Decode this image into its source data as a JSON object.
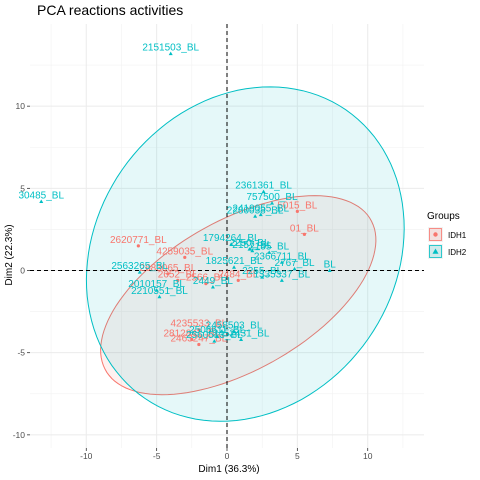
{
  "chart_data": {
    "type": "scatter",
    "title": "PCA reactions activities",
    "xlabel": "Dim1 (36.3%)",
    "ylabel": "Dim2 (22.3%)",
    "xlim": [
      -14,
      14
    ],
    "ylim": [
      -10.8,
      15
    ],
    "xticks": [
      -10,
      -5,
      0,
      5,
      10
    ],
    "yticks": [
      -10,
      -5,
      0,
      5,
      10
    ],
    "grid": true,
    "zero_lines": true,
    "legend": {
      "title": "Groups",
      "placement": "right",
      "entries": [
        {
          "label": "IDH1",
          "symbol": "circle",
          "color": "#F8766D"
        },
        {
          "label": "IDH2",
          "symbol": "triangle",
          "color": "#00BFC4"
        }
      ]
    },
    "ellipses": [
      {
        "group": "IDH1",
        "color": "#F8766D",
        "center": [
          0.8,
          -1.5
        ],
        "semi_axes": [
          10.5,
          4.7
        ],
        "angle_deg": 24
      },
      {
        "group": "IDH2",
        "color": "#00BFC4",
        "center": [
          1.3,
          1.0
        ],
        "semi_axes": [
          11.7,
          9.7
        ],
        "angle_deg": 28
      }
    ],
    "series": [
      {
        "name": "IDH1",
        "color": "#F8766D",
        "points": [
          {
            "x": -6.3,
            "y": 1.5,
            "label": "2620771_BL"
          },
          {
            "x": -3.0,
            "y": 0.8,
            "label": "4259035_BL"
          },
          {
            "x": 5.0,
            "y": 3.6,
            "label": "5015_BL"
          },
          {
            "x": 5.5,
            "y": 2.2,
            "label": "01_BL"
          },
          {
            "x": -4.2,
            "y": -0.2,
            "label": "2683065_BL"
          },
          {
            "x": -3.5,
            "y": -0.6,
            "label": "2652_BL"
          },
          {
            "x": -1.5,
            "y": -0.8,
            "label": "2566_BL"
          },
          {
            "x": 0.8,
            "y": -0.6,
            "label": "2484_BL"
          },
          {
            "x": -2.0,
            "y": -3.6,
            "label": "4235533_BL"
          },
          {
            "x": -2.5,
            "y": -4.2,
            "label": "2812841_BL"
          },
          {
            "x": -2.0,
            "y": -4.5,
            "label": "2463247_BL"
          }
        ]
      },
      {
        "name": "IDH2",
        "color": "#00BFC4",
        "points": [
          {
            "x": -4.0,
            "y": 13.2,
            "label": "2151503_BL"
          },
          {
            "x": -13.2,
            "y": 4.2,
            "label": "30485_BL"
          },
          {
            "x": 2.6,
            "y": 4.8,
            "label": "2361361_BL"
          },
          {
            "x": 3.2,
            "y": 4.1,
            "label": "757500_BL"
          },
          {
            "x": 2.4,
            "y": 3.4,
            "label": "2419055_BL"
          },
          {
            "x": 2.0,
            "y": 3.3,
            "label": "2280038_BL"
          },
          {
            "x": 0.3,
            "y": 1.6,
            "label": "1794264_BL"
          },
          {
            "x": 1.6,
            "y": 1.3,
            "label": "2250_BL"
          },
          {
            "x": 1.8,
            "y": 1.2,
            "label": "2157_BL"
          },
          {
            "x": 3.0,
            "y": 1.1,
            "label": "2135_BL"
          },
          {
            "x": 0.5,
            "y": 0.2,
            "label": "1825621_BL"
          },
          {
            "x": 3.9,
            "y": 0.5,
            "label": "2366711_BL"
          },
          {
            "x": 4.8,
            "y": 0.1,
            "label": "2767_BL"
          },
          {
            "x": 7.3,
            "y": 0.0,
            "label": "BL"
          },
          {
            "x": 3.9,
            "y": -0.6,
            "label": "1335337_BL"
          },
          {
            "x": 2.5,
            "y": -0.4,
            "label": "2255_BL"
          },
          {
            "x": -6.2,
            "y": -0.1,
            "label": "2563265_BL"
          },
          {
            "x": -5.0,
            "y": -1.2,
            "label": "2010157_BL"
          },
          {
            "x": -4.8,
            "y": -1.6,
            "label": "2210551_BL"
          },
          {
            "x": -1.0,
            "y": -1.0,
            "label": "2449_BL"
          },
          {
            "x": 0.5,
            "y": -3.7,
            "label": "2458503_BL"
          },
          {
            "x": -0.7,
            "y": -4.0,
            "label": "2506611_BL"
          },
          {
            "x": -0.9,
            "y": -4.3,
            "label": "2560513_BL"
          },
          {
            "x": 1.0,
            "y": -4.2,
            "label": "2452431_BL"
          }
        ]
      }
    ]
  }
}
